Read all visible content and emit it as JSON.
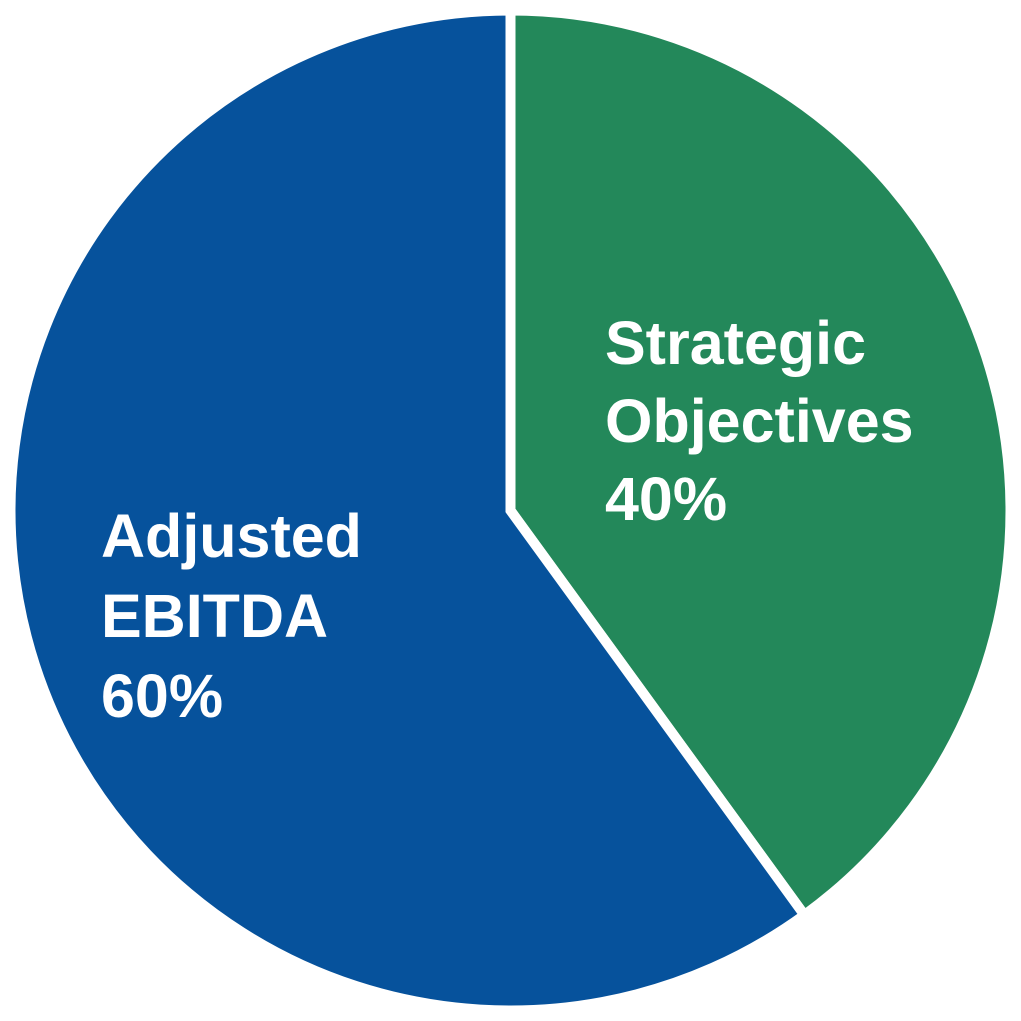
{
  "chart_data": {
    "type": "pie",
    "title": "",
    "start_angle": "12 o'clock",
    "direction": "clockwise",
    "slices": [
      {
        "label_lines": [
          "Strategic",
          "Objectives"
        ],
        "value_label": "40%",
        "value": 40,
        "color": "#23885A"
      },
      {
        "label_lines": [
          "Adjusted",
          "EBITDA"
        ],
        "value_label": "60%",
        "value": 60,
        "color": "#06529C"
      }
    ]
  }
}
